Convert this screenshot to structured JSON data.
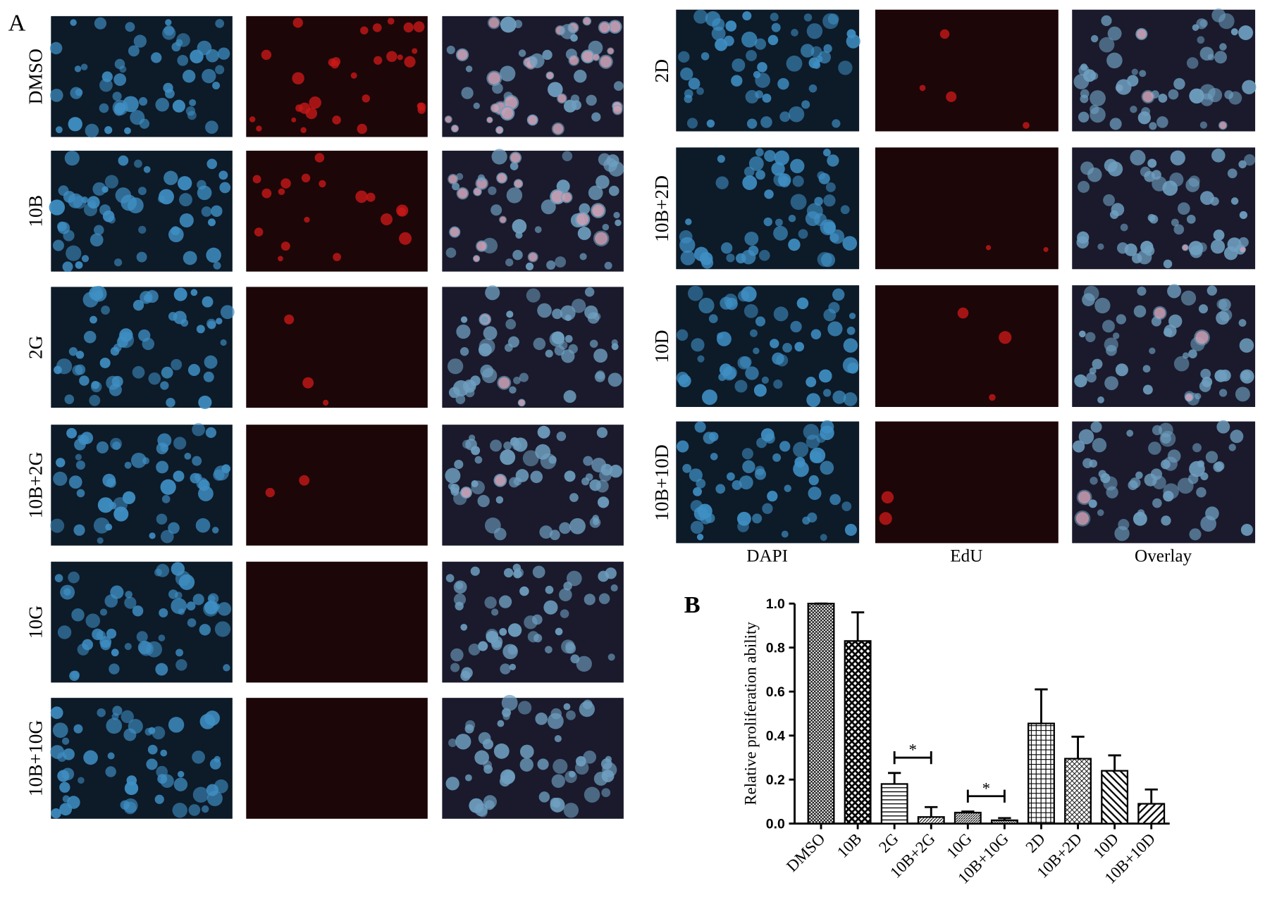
{
  "panel_a": {
    "label": "A",
    "left_rows": [
      "DMSO",
      "10B",
      "2G",
      "10B+2G",
      "10G",
      "10B+10G"
    ],
    "right_rows": [
      "2D",
      "10B+2D",
      "10D",
      "10B+10D"
    ],
    "columns": [
      "DAPI",
      "EdU",
      "Overlay"
    ]
  },
  "chart_data": {
    "type": "bar",
    "panel_label": "B",
    "ylabel": "Relative proliferation ability",
    "categories": [
      "DMSO",
      "10B",
      "2G",
      "10B+2G",
      "10G",
      "10B+10G",
      "2D",
      "10B+2D",
      "10D",
      "10B+10D"
    ],
    "values": [
      1.0,
      0.83,
      0.18,
      0.03,
      0.05,
      0.015,
      0.455,
      0.295,
      0.24,
      0.09
    ],
    "errors": [
      0,
      0.13,
      0.05,
      0.045,
      0.005,
      0.01,
      0.155,
      0.1,
      0.07,
      0.065
    ],
    "ylim": [
      0,
      1
    ],
    "yticks": [
      {
        "value": 0,
        "label": "0.0"
      },
      {
        "value": 0.2,
        "label": "0.2"
      },
      {
        "value": 0.4,
        "label": "0.4"
      },
      {
        "value": 0.6,
        "label": "0.6"
      },
      {
        "value": 0.8,
        "label": "0.8"
      },
      {
        "value": 1,
        "label": "1.0"
      }
    ],
    "significance": [
      {
        "label": "*",
        "pair": [
          2,
          3
        ]
      },
      {
        "label": "*",
        "pair": [
          4,
          5
        ]
      }
    ],
    "color": "#000000"
  }
}
